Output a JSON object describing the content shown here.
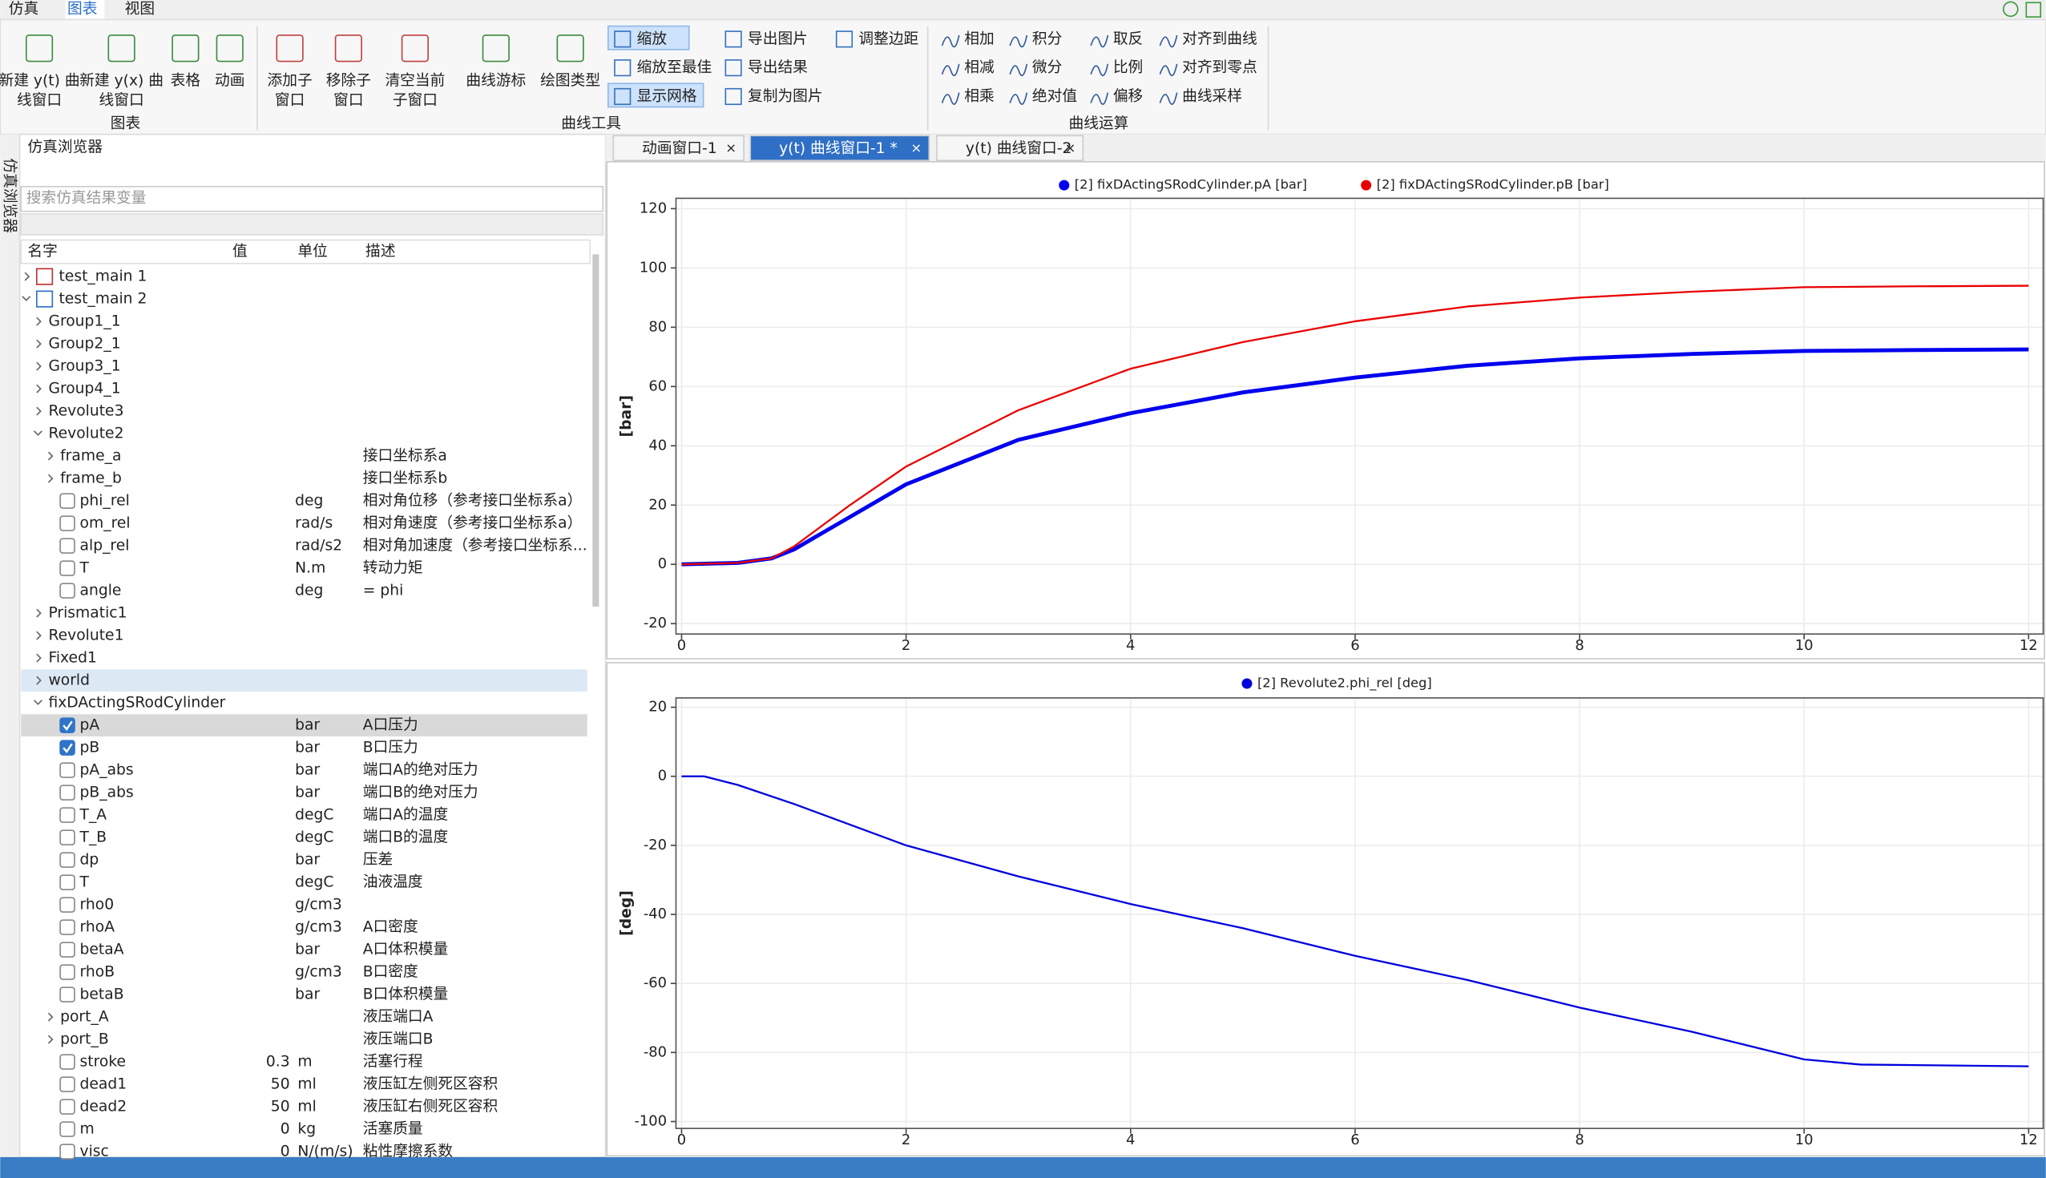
{
  "menu_tabs": [
    "仿真",
    "图表",
    "视图"
  ],
  "ribbon": {
    "large_buttons": [
      {
        "lines": [
          "新建 y(t) 曲",
          "线窗口"
        ]
      },
      {
        "lines": [
          "新建 y(x) 曲",
          "线窗口"
        ]
      },
      {
        "lines": [
          "表格"
        ]
      },
      {
        "lines": [
          "动画"
        ]
      },
      {
        "lines": [
          "添加子",
          "窗口"
        ]
      },
      {
        "lines": [
          "移除子",
          "窗口"
        ]
      },
      {
        "lines": [
          "清空当前",
          "子窗口"
        ]
      },
      {
        "lines": [
          "曲线游标"
        ]
      },
      {
        "lines": [
          "绘图类型"
        ]
      }
    ],
    "small_buttons": [
      "缩放",
      "缩放至最佳",
      "显示网格",
      "导出图片",
      "导出结果",
      "复制为图片",
      "调整边距"
    ],
    "curve_ops": [
      "相加",
      "相减",
      "相乘",
      "积分",
      "微分",
      "绝对值",
      "取反",
      "比例",
      "偏移",
      "对齐到曲线",
      "对齐到零点",
      "曲线采样"
    ],
    "groups": [
      "图表",
      "曲线工具",
      "曲线运算"
    ]
  },
  "browser": {
    "title": "仿真浏览器",
    "side_tab": "仿真浏览器",
    "search_placeholder": "搜索仿真结果变量",
    "columns": [
      "名字",
      "值",
      "单位",
      "描述"
    ],
    "rows": [
      {
        "name": "test_main 1"
      },
      {
        "name": "test_main 2"
      },
      {
        "name": "Group1_1"
      },
      {
        "name": "Group2_1"
      },
      {
        "name": "Group3_1"
      },
      {
        "name": "Group4_1"
      },
      {
        "name": "Revolute3"
      },
      {
        "name": "Revolute2"
      },
      {
        "name": "frame_a",
        "desc": "接口坐标系a"
      },
      {
        "name": "frame_b",
        "desc": "接口坐标系b"
      },
      {
        "name": "phi_rel",
        "unit": "deg",
        "desc": "相对角位移（参考接口坐标系a）",
        "checked": false
      },
      {
        "name": "om_rel",
        "unit": "rad/s",
        "desc": "相对角速度（参考接口坐标系a）",
        "checked": false
      },
      {
        "name": "alp_rel",
        "unit": "rad/s2",
        "desc": "相对角加速度（参考接口坐标系...",
        "checked": false
      },
      {
        "name": "T",
        "unit": "N.m",
        "desc": "转动力矩",
        "checked": false
      },
      {
        "name": "angle",
        "unit": "deg",
        "desc": "= phi",
        "checked": false
      },
      {
        "name": "Prismatic1"
      },
      {
        "name": "Revolute1"
      },
      {
        "name": "Fixed1"
      },
      {
        "name": "world"
      },
      {
        "name": "fixDActingSRodCylinder"
      },
      {
        "name": "pA",
        "unit": "bar",
        "desc": "A口压力",
        "checked": true
      },
      {
        "name": "pB",
        "unit": "bar",
        "desc": "B口压力",
        "checked": true
      },
      {
        "name": "pA_abs",
        "unit": "bar",
        "desc": "端口A的绝对压力",
        "checked": false
      },
      {
        "name": "pB_abs",
        "unit": "bar",
        "desc": "端口B的绝对压力",
        "checked": false
      },
      {
        "name": "T_A",
        "unit": "degC",
        "desc": "端口A的温度",
        "checked": false
      },
      {
        "name": "T_B",
        "unit": "degC",
        "desc": "端口B的温度",
        "checked": false
      },
      {
        "name": "dp",
        "unit": "bar",
        "desc": "压差",
        "checked": false
      },
      {
        "name": "T",
        "unit": "degC",
        "desc": "油液温度",
        "checked": false
      },
      {
        "name": "rho0",
        "unit": "g/cm3",
        "checked": false
      },
      {
        "name": "rhoA",
        "unit": "g/cm3",
        "desc": "A口密度",
        "checked": false
      },
      {
        "name": "betaA",
        "unit": "bar",
        "desc": "A口体积模量",
        "checked": false
      },
      {
        "name": "rhoB",
        "unit": "g/cm3",
        "desc": "B口密度",
        "checked": false
      },
      {
        "name": "betaB",
        "unit": "bar",
        "desc": "B口体积模量",
        "checked": false
      },
      {
        "name": "port_A",
        "desc": "液压端口A"
      },
      {
        "name": "port_B",
        "desc": "液压端口B"
      },
      {
        "name": "stroke",
        "value": "0.3",
        "unit": "m",
        "desc": "活塞行程",
        "checked": false
      },
      {
        "name": "dead1",
        "value": "50",
        "unit": "ml",
        "desc": "液压缸左侧死区容积",
        "checked": false
      },
      {
        "name": "dead2",
        "value": "50",
        "unit": "ml",
        "desc": "液压缸右侧死区容积",
        "checked": false
      },
      {
        "name": "m",
        "value": "0",
        "unit": "kg",
        "desc": "活塞质量",
        "checked": false
      },
      {
        "name": "visc",
        "value": "0",
        "unit": "N/(m/s)",
        "desc": "粘性摩擦系数",
        "checked": false
      }
    ]
  },
  "chart_tabs": [
    "动画窗口-1",
    "y(t) 曲线窗口-1 *",
    "y(t) 曲线窗口-2"
  ],
  "chart_data": [
    {
      "type": "line",
      "ylabel": "[bar]",
      "grid": true,
      "x": [
        0,
        0.5,
        0.8,
        1,
        1.5,
        2,
        3,
        4,
        5,
        6,
        7,
        8,
        9,
        10,
        11,
        12
      ],
      "series": [
        {
          "name": "[2] fixDActingSRodCylinder.pA [bar]",
          "color": "#0000ee",
          "values": [
            0,
            0.5,
            2,
            5,
            16,
            27,
            42,
            51,
            58,
            63,
            67,
            69.5,
            71,
            72,
            72.3,
            72.5
          ]
        },
        {
          "name": "[2] fixDActingSRodCylinder.pB [bar]",
          "color": "#e80000",
          "values": [
            0,
            0.5,
            2,
            6,
            20,
            33,
            52,
            66,
            75,
            82,
            87,
            90,
            92,
            93.5,
            93.8,
            94
          ]
        }
      ],
      "xlim": [
        -0.05,
        12.13
      ],
      "ylim": [
        -23.5,
        123.5
      ],
      "xticks": [
        0,
        2,
        4,
        6,
        8,
        10,
        12
      ],
      "yticks": [
        -20,
        0,
        20,
        40,
        60,
        80,
        100,
        120
      ]
    },
    {
      "type": "line",
      "ylabel": "[deg]",
      "grid": true,
      "x": [
        0,
        0.2,
        0.5,
        1,
        2,
        3,
        4,
        5,
        6,
        7,
        8,
        9,
        10,
        10.5,
        12
      ],
      "series": [
        {
          "name": "[2] Revolute2.phi_rel [deg]",
          "color": "#0000dd",
          "values": [
            0,
            0,
            -2.5,
            -8,
            -20,
            -29,
            -37,
            -44,
            -52,
            -59,
            -67,
            -74,
            -82,
            -83.5,
            -84
          ]
        }
      ],
      "xlim": [
        -0.05,
        12.13
      ],
      "ylim": [
        -102,
        22.7
      ],
      "xticks": [
        0,
        2,
        4,
        6,
        8,
        10,
        12
      ],
      "yticks": [
        -100,
        -80,
        -60,
        -40,
        -20,
        0,
        20
      ]
    }
  ]
}
